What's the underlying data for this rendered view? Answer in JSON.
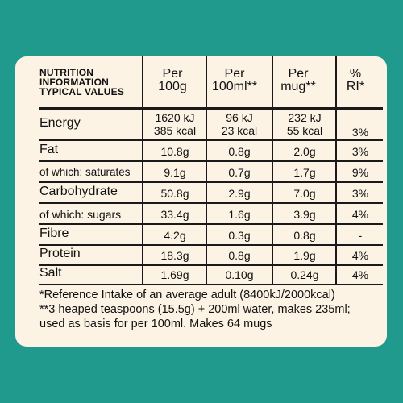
{
  "header": {
    "title_lines": [
      "NUTRITION",
      "INFORMATION",
      "TYPICAL VALUES"
    ],
    "columns": [
      {
        "line1": "Per",
        "line2": "100g"
      },
      {
        "line1": "Per",
        "line2": "100ml**"
      },
      {
        "line1": "Per",
        "line2": "mug**"
      },
      {
        "line1": "%",
        "line2": "RI*"
      }
    ]
  },
  "rows": [
    {
      "label": "Energy",
      "v1": [
        "1620 kJ",
        "385 kcal"
      ],
      "v2": [
        "96 kJ",
        "23 kcal"
      ],
      "v3": [
        "232 kJ",
        "55 kcal"
      ],
      "ri": "3%"
    },
    {
      "label": "Fat",
      "v1": "10.8g",
      "v2": "0.8g",
      "v3": "2.0g",
      "ri": "3%"
    },
    {
      "label": "of which: saturates",
      "v1": "9.1g",
      "v2": "0.7g",
      "v3": "1.7g",
      "ri": "9%"
    },
    {
      "label": "Carbohydrate",
      "v1": "50.8g",
      "v2": "2.9g",
      "v3": "7.0g",
      "ri": "3%"
    },
    {
      "label": "of which: sugars",
      "v1": "33.4g",
      "v2": "1.6g",
      "v3": "3.9g",
      "ri": "4%"
    },
    {
      "label": "Fibre",
      "v1": "4.2g",
      "v2": "0.3g",
      "v3": "0.8g",
      "ri": "-"
    },
    {
      "label": "Protein",
      "v1": "18.3g",
      "v2": "0.8g",
      "v3": "1.9g",
      "ri": "4%"
    },
    {
      "label": "Salt",
      "v1": "1.69g",
      "v2": "0.10g",
      "v3": "0.24g",
      "ri": "4%"
    }
  ],
  "footnotes": [
    "*Reference Intake of an average adult (8400kJ/2000kcal)",
    "**3 heaped teaspoons (15.5g) + 200ml water, makes 235ml;",
    "used as basis for per 100ml. Makes 64 mugs"
  ],
  "colors": {
    "background": "#1f9a8c",
    "panel": "#fcf3e4",
    "text": "#111111"
  }
}
